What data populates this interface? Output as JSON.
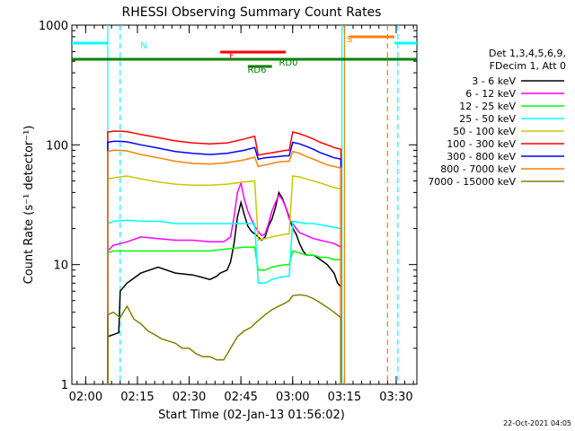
{
  "chart_data": {
    "type": "line",
    "title": "RHESSI Observing Summary Count Rates",
    "xlabel": "Start Time (02-Jan-13 01:56:02)",
    "ylabel": "Count Rate (s⁻¹ detector⁻¹)",
    "ylim": [
      1,
      1000
    ],
    "yscale": "log",
    "xlim_minutes": [
      0,
      100
    ],
    "x_ticks": [
      {
        "label": "02:00",
        "t": 4
      },
      {
        "label": "02:15",
        "t": 19
      },
      {
        "label": "02:30",
        "t": 34
      },
      {
        "label": "02:45",
        "t": 49
      },
      {
        "label": "03:00",
        "t": 64
      },
      {
        "label": "03:15",
        "t": 79
      },
      {
        "label": "03:30",
        "t": 94
      }
    ],
    "y_ticks": [
      {
        "label": "1",
        "v": 1
      },
      {
        "label": "10",
        "v": 10
      },
      {
        "label": "100",
        "v": 100
      },
      {
        "label": "1000",
        "v": 1000
      }
    ],
    "legend_header": [
      "Det 1,3,4,5,6,9,",
      "FDecim 1, Att 0"
    ],
    "legend_position": "right",
    "footer_stamp": "22-Oct-2021 04:05",
    "series": [
      {
        "name": "3 - 6 keV",
        "color": "#000000",
        "x": [
          10.4,
          12,
          13.6,
          14,
          16,
          20,
          25,
          30,
          35,
          38,
          40,
          42,
          43,
          45,
          46,
          47,
          48,
          49,
          50,
          51,
          52,
          53,
          54,
          55,
          56,
          57,
          58,
          59,
          60,
          61,
          62,
          63,
          64,
          65,
          66,
          67,
          68,
          69,
          70,
          72,
          74,
          76,
          77,
          78
        ],
        "y": [
          2.5,
          2.6,
          2.7,
          6,
          7,
          8.5,
          9.5,
          8.5,
          8.2,
          7.8,
          7.5,
          8,
          8.5,
          9,
          10.5,
          15,
          25,
          33,
          26,
          21,
          19,
          18,
          17,
          16,
          17,
          21,
          24,
          30,
          40,
          36,
          30,
          25,
          20,
          18,
          15,
          13,
          12,
          12,
          12,
          11,
          10,
          8.5,
          7,
          6.5
        ]
      },
      {
        "name": "6 - 12 keV",
        "color": "#ff00ff",
        "x": [
          10.4,
          12,
          16,
          20,
          25,
          30,
          35,
          40,
          44,
          46,
          47,
          48,
          49,
          50,
          51,
          52,
          53,
          54,
          55,
          56,
          57,
          58,
          59,
          60,
          61,
          62,
          63,
          64,
          65,
          66,
          68,
          70,
          72,
          74,
          76,
          78
        ],
        "y": [
          13,
          14.5,
          15.5,
          17,
          16.5,
          16,
          16,
          15.5,
          15.5,
          17,
          25,
          40,
          48,
          35,
          28,
          24,
          21,
          19,
          17.5,
          18,
          22,
          28,
          33,
          38,
          35,
          30,
          24,
          22,
          20,
          18.5,
          17.5,
          16.5,
          16,
          15.5,
          15,
          14
        ]
      },
      {
        "name": "12 - 25 keV",
        "color": "#00ff00",
        "x": [
          10.4,
          12,
          16,
          20,
          25,
          30,
          35,
          40,
          45,
          50,
          53,
          54,
          56,
          58,
          60,
          62,
          63,
          64,
          66,
          68,
          70,
          72,
          74,
          76,
          78
        ],
        "y": [
          12.5,
          13,
          13,
          13,
          13,
          13,
          13,
          13,
          13.5,
          14,
          14,
          9,
          9,
          9.5,
          9.8,
          10,
          10,
          13,
          12.5,
          12,
          12,
          11.5,
          11.5,
          11,
          11
        ]
      },
      {
        "name": "25 - 50 keV",
        "color": "#00ffff",
        "x": [
          10.4,
          12,
          16,
          20,
          25,
          30,
          35,
          40,
          45,
          50,
          53,
          54,
          56,
          58,
          60,
          62,
          63,
          64,
          66,
          68,
          70,
          72,
          74,
          76,
          78
        ],
        "y": [
          22,
          23,
          23.5,
          23,
          23,
          22,
          22,
          22,
          22,
          22,
          22,
          7,
          7,
          7.5,
          7.8,
          8,
          8,
          23,
          22.5,
          22,
          22,
          21.5,
          21,
          20.5,
          20
        ]
      },
      {
        "name": "50 - 100 keV",
        "color": "#c8c800",
        "x": [
          10.4,
          12,
          14,
          16,
          20,
          25,
          30,
          35,
          40,
          45,
          50,
          53,
          54,
          56,
          58,
          60,
          62,
          63,
          64,
          66,
          68,
          70,
          72,
          74,
          76,
          78
        ],
        "y": [
          52,
          53,
          54,
          55,
          52,
          49,
          47,
          46,
          46,
          47,
          49,
          50,
          16,
          16.5,
          17,
          17.5,
          18,
          18,
          55,
          54,
          52,
          50,
          48,
          46,
          44,
          43
        ]
      },
      {
        "name": "100 - 300 keV",
        "color": "#ff0000",
        "x": [
          10.4,
          12,
          14,
          16,
          20,
          25,
          30,
          35,
          40,
          45,
          50,
          53,
          54,
          56,
          58,
          60,
          62,
          63,
          64,
          66,
          68,
          70,
          72,
          74,
          76,
          78
        ],
        "y": [
          128,
          130,
          130,
          129,
          122,
          115,
          108,
          104,
          102,
          104,
          112,
          118,
          82,
          84,
          86,
          88,
          90,
          90,
          128,
          124,
          118,
          112,
          105,
          100,
          95,
          92
        ]
      },
      {
        "name": "300 - 800 keV",
        "color": "#0000ff",
        "x": [
          10.4,
          12,
          14,
          16,
          20,
          25,
          30,
          35,
          40,
          45,
          50,
          53,
          54,
          56,
          58,
          60,
          62,
          63,
          64,
          66,
          68,
          70,
          72,
          74,
          76,
          78
        ],
        "y": [
          105,
          107,
          107,
          106,
          100,
          94,
          88,
          85,
          83,
          85,
          90,
          95,
          76,
          78,
          79,
          80,
          81,
          81,
          105,
          102,
          97,
          92,
          86,
          82,
          78,
          76
        ]
      },
      {
        "name": "800 - 7000 keV",
        "color": "#ff8000",
        "x": [
          10.4,
          12,
          14,
          16,
          20,
          25,
          30,
          35,
          40,
          45,
          50,
          53,
          54,
          56,
          58,
          60,
          62,
          63,
          64,
          66,
          68,
          70,
          72,
          74,
          76,
          78
        ],
        "y": [
          88,
          90,
          90,
          89,
          83,
          78,
          73,
          70,
          69,
          71,
          75,
          79,
          66,
          68,
          70,
          72,
          73,
          73,
          88,
          85,
          80,
          76,
          72,
          68,
          66,
          64
        ]
      },
      {
        "name": "7000 - 15000 keV",
        "color": "#808000",
        "x": [
          10.4,
          12,
          14,
          16,
          18,
          20,
          22,
          24,
          26,
          28,
          30,
          32,
          34,
          36,
          38,
          40,
          42,
          44,
          46,
          48,
          50,
          52,
          53,
          54,
          56,
          58,
          60,
          62,
          63,
          64,
          66,
          68,
          70,
          72,
          74,
          76,
          78
        ],
        "y": [
          3.8,
          4,
          3.6,
          4.5,
          3.5,
          3.2,
          2.8,
          2.6,
          2.4,
          2.3,
          2.2,
          2,
          2,
          1.8,
          1.7,
          1.7,
          1.6,
          1.6,
          2,
          2.5,
          2.8,
          3,
          3.2,
          3.4,
          3.8,
          4.2,
          4.5,
          4.8,
          5,
          5.5,
          5.6,
          5.5,
          5.2,
          4.8,
          4.4,
          4,
          3.6
        ]
      }
    ],
    "annotations": [
      {
        "label": "N",
        "color": "#00ffff"
      },
      {
        "label": "S",
        "color": "#ff8000"
      },
      {
        "label": "F",
        "color": "#ff0000"
      },
      {
        "label": "RD0",
        "color": "#008000"
      },
      {
        "label": "RD6",
        "color": "#008000"
      }
    ],
    "state_bars": {
      "night": {
        "color": "#00ffff",
        "x_ranges": [
          [
            0,
            10.4
          ],
          [
            93.5,
            100
          ]
        ]
      },
      "saa": {
        "color": "#ff8000",
        "x_ranges": [
          [
            80.5,
            93.5
          ]
        ]
      },
      "flare": {
        "color": "#ff0000",
        "x_ranges": [
          [
            43,
            62
          ]
        ]
      },
      "rd0": {
        "color": "#008000",
        "x_ranges": [
          [
            0,
            100
          ]
        ]
      },
      "rd6": {
        "color": "#008000",
        "x_ranges": [
          [
            51,
            58
          ]
        ]
      }
    },
    "vlines": [
      {
        "t": 10.4,
        "color": "#00ffff",
        "style": "solid"
      },
      {
        "t": 14,
        "color": "#00ffff",
        "style": "dashed"
      },
      {
        "t": 78.3,
        "color": "#00ffff",
        "style": "solid"
      },
      {
        "t": 79,
        "color": "#ff8000",
        "style": "solid"
      },
      {
        "t": 91.5,
        "color": "#ff8000",
        "style": "dashed"
      },
      {
        "t": 94.5,
        "color": "#00ffff",
        "style": "dashed"
      }
    ]
  }
}
